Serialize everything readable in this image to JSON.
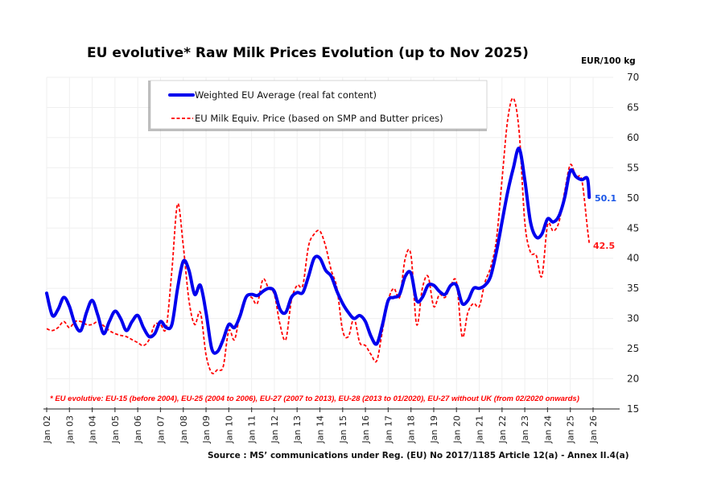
{
  "chart_data": {
    "type": "line",
    "title": "EU evolutive* Raw Milk Prices Evolution (up to Nov 2025)",
    "ylabel": "EUR/100 kg",
    "xlabel": "",
    "ylim": [
      15,
      70
    ],
    "yticks": [
      15,
      20,
      25,
      30,
      35,
      40,
      45,
      50,
      55,
      60,
      65,
      70
    ],
    "xlim": [
      2002,
      2026
    ],
    "xtick_labels": [
      "Jan 02",
      "Jan 03",
      "Jan 04",
      "Jan 05",
      "Jan 06",
      "Jan 07",
      "Jan 08",
      "Jan 09",
      "Jan 10",
      "Jan 11",
      "Jan 12",
      "Jan 13",
      "Jan 14",
      "Jan 15",
      "Jan 16",
      "Jan 17",
      "Jan 18",
      "Jan 19",
      "Jan 20",
      "Jan 21",
      "Jan 22",
      "Jan 23",
      "Jan 24",
      "Jan 25",
      "Jan 26"
    ],
    "xtick_values": [
      2002,
      2003,
      2004,
      2005,
      2006,
      2007,
      2008,
      2009,
      2010,
      2011,
      2012,
      2013,
      2014,
      2015,
      2016,
      2017,
      2018,
      2019,
      2020,
      2021,
      2022,
      2023,
      2024,
      2025,
      2026
    ],
    "grid": true,
    "legend_position": "top-center",
    "series": [
      {
        "name": "Weighted EU Average (real fat content)",
        "color": "#0000ee",
        "style": "solid",
        "end_label": "50.1",
        "x": [
          2002.0,
          2002.25,
          2002.5,
          2002.75,
          2003.0,
          2003.25,
          2003.5,
          2003.75,
          2004.0,
          2004.25,
          2004.5,
          2004.75,
          2005.0,
          2005.25,
          2005.5,
          2005.75,
          2006.0,
          2006.25,
          2006.5,
          2006.75,
          2007.0,
          2007.25,
          2007.5,
          2007.75,
          2008.0,
          2008.25,
          2008.5,
          2008.75,
          2009.0,
          2009.25,
          2009.5,
          2009.75,
          2010.0,
          2010.25,
          2010.5,
          2010.75,
          2011.0,
          2011.25,
          2011.5,
          2011.75,
          2012.0,
          2012.25,
          2012.5,
          2012.75,
          2013.0,
          2013.25,
          2013.5,
          2013.75,
          2014.0,
          2014.25,
          2014.5,
          2014.75,
          2015.0,
          2015.25,
          2015.5,
          2015.75,
          2016.0,
          2016.25,
          2016.5,
          2016.75,
          2017.0,
          2017.25,
          2017.5,
          2017.75,
          2018.0,
          2018.25,
          2018.5,
          2018.75,
          2019.0,
          2019.25,
          2019.5,
          2019.75,
          2020.0,
          2020.25,
          2020.5,
          2020.75,
          2021.0,
          2021.25,
          2021.5,
          2021.75,
          2022.0,
          2022.25,
          2022.5,
          2022.75,
          2023.0,
          2023.25,
          2023.5,
          2023.75,
          2024.0,
          2024.25,
          2024.5,
          2024.75,
          2025.0,
          2025.25,
          2025.5,
          2025.75,
          2025.83
        ],
        "values": [
          34.2,
          30.5,
          31.5,
          33.5,
          32,
          29,
          28,
          31,
          33,
          30.5,
          27.5,
          29.5,
          31.2,
          30,
          28,
          29.5,
          30.5,
          28.5,
          27,
          27.5,
          29.5,
          28.5,
          29,
          35,
          39.5,
          38,
          34,
          35.5,
          31,
          25,
          24.5,
          26.5,
          29,
          28.5,
          30.5,
          33.5,
          34,
          33.8,
          34.5,
          35,
          34.5,
          31.5,
          31,
          33.5,
          34.3,
          34.3,
          37,
          40,
          40,
          38,
          37,
          34.5,
          32.5,
          31,
          30,
          30.5,
          29.5,
          27,
          25.8,
          29,
          33,
          33.5,
          34,
          37,
          37.5,
          33,
          33.5,
          35.5,
          35.5,
          34.5,
          34,
          35.5,
          35.5,
          32.5,
          33,
          35,
          35,
          35.5,
          37,
          41,
          46,
          51,
          55,
          58.2,
          53,
          46,
          43.5,
          44,
          46.5,
          46,
          47,
          50,
          54.5,
          53.5,
          53,
          53.2,
          50.1
        ]
      },
      {
        "name": "EU Milk Equiv. Price (based on SMP and Butter prices)",
        "color": "#ff0000",
        "style": "dashed",
        "end_label": "42.5",
        "x": [
          2002.0,
          2002.25,
          2002.5,
          2002.75,
          2003.0,
          2003.25,
          2003.5,
          2003.75,
          2004.0,
          2004.25,
          2004.5,
          2004.75,
          2005.0,
          2005.25,
          2005.5,
          2005.75,
          2006.0,
          2006.25,
          2006.5,
          2006.75,
          2007.0,
          2007.25,
          2007.5,
          2007.75,
          2008.0,
          2008.25,
          2008.5,
          2008.75,
          2009.0,
          2009.25,
          2009.5,
          2009.75,
          2010.0,
          2010.25,
          2010.5,
          2010.75,
          2011.0,
          2011.25,
          2011.5,
          2011.75,
          2012.0,
          2012.25,
          2012.5,
          2012.75,
          2013.0,
          2013.25,
          2013.5,
          2013.75,
          2014.0,
          2014.25,
          2014.5,
          2014.75,
          2015.0,
          2015.25,
          2015.5,
          2015.75,
          2016.0,
          2016.25,
          2016.5,
          2016.75,
          2017.0,
          2017.25,
          2017.5,
          2017.75,
          2018.0,
          2018.25,
          2018.5,
          2018.75,
          2019.0,
          2019.25,
          2019.5,
          2019.75,
          2020.0,
          2020.25,
          2020.5,
          2020.75,
          2021.0,
          2021.25,
          2021.5,
          2021.75,
          2022.0,
          2022.25,
          2022.5,
          2022.75,
          2023.0,
          2023.25,
          2023.5,
          2023.75,
          2024.0,
          2024.25,
          2024.5,
          2024.75,
          2025.0,
          2025.25,
          2025.5,
          2025.75,
          2025.83
        ],
        "values": [
          28.3,
          28,
          28.5,
          29.5,
          28.5,
          29.5,
          29.5,
          29,
          29,
          29.5,
          28.8,
          28,
          27.5,
          27.2,
          27,
          26.5,
          26,
          25.5,
          26.5,
          29,
          29,
          28.5,
          38,
          49,
          42,
          33,
          29,
          31,
          24,
          21,
          21.5,
          22,
          28,
          26.5,
          31,
          33.5,
          33.5,
          32.5,
          36.5,
          35,
          34,
          29,
          26.5,
          33,
          35.5,
          35.5,
          42,
          44,
          44.5,
          42,
          38,
          35,
          28,
          27,
          30,
          26,
          25.5,
          24,
          23,
          28,
          33,
          35,
          33.5,
          40,
          40.5,
          29,
          35,
          37,
          32,
          34,
          33.5,
          35.5,
          36,
          27,
          31,
          32.5,
          32,
          36,
          38.5,
          43,
          53,
          63,
          66.5,
          61,
          46,
          41,
          40.5,
          37,
          45.5,
          44.5,
          46,
          51,
          55.5,
          53.5,
          53,
          45,
          42.5
        ]
      }
    ],
    "annotations": [
      "* EU evolutive: EU-15 (before 2004), EU-25 (2004 to 2006), EU-27 (2007 to 2013), EU-28 (2013 to 01/2020), EU-27 without UK (from 02/2020 onwards)",
      "Source : MS' communications under Reg. (EU) No 2017/1185 Article 12(a) - Annex II.4(a)"
    ]
  },
  "header": {
    "title": "EU evolutive* Raw Milk Prices Evolution (up to Nov 2025)",
    "unit": "EUR/100 kg"
  },
  "legend": {
    "items": [
      {
        "label": "Weighted EU Average (real fat content)"
      },
      {
        "label": "EU Milk Equiv. Price (based on SMP and Butter prices)"
      }
    ]
  },
  "footnote": "* EU evolutive: EU-15 (before 2004), EU-25 (2004 to 2006), EU-27 (2007 to 2013), EU-28 (2013 to 01/2020), EU-27 without UK (from 02/2020 onwards)",
  "source": "Source : MS’ communications under Reg. (EU) No 2017/1185 Article 12(a) - Annex II.4(a)"
}
